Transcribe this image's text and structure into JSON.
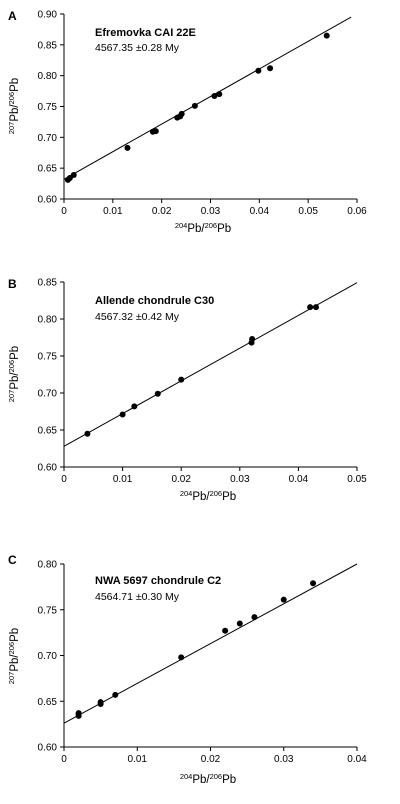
{
  "chart_data": [
    {
      "type": "scatter",
      "panel_label": "A",
      "title": "Efremovka CAI 22E",
      "subtitle": "4567.35 ±0.28 My",
      "xlabel": {
        "sup1": "204",
        "base1": "Pb/",
        "sup2": "206",
        "base2": "Pb"
      },
      "ylabel": {
        "sup1": "207",
        "base1": "Pb/",
        "sup2": "206",
        "base2": "Pb"
      },
      "xlim": [
        0,
        0.06
      ],
      "ylim": [
        0.6,
        0.9
      ],
      "xticks": [
        "0",
        "0.01",
        "0.02",
        "0.03",
        "0.04",
        "0.05",
        "0.06"
      ],
      "yticks": [
        "0.60",
        "0.65",
        "0.70",
        "0.75",
        "0.80",
        "0.85",
        "0.90"
      ],
      "grid": false,
      "x": [
        0.0008,
        0.0012,
        0.002,
        0.013,
        0.0182,
        0.0188,
        0.0232,
        0.0238,
        0.0241,
        0.0268,
        0.0308,
        0.0318,
        0.0398,
        0.0422,
        0.0538
      ],
      "y": [
        0.631,
        0.634,
        0.639,
        0.683,
        0.709,
        0.71,
        0.732,
        0.734,
        0.738,
        0.751,
        0.767,
        0.77,
        0.808,
        0.812,
        0.865
      ],
      "fit_line": {
        "x": [
          0,
          0.0588
        ],
        "y": [
          0.632,
          0.895
        ]
      }
    },
    {
      "type": "scatter",
      "panel_label": "B",
      "title": "Allende chondrule C30",
      "subtitle": "4567.32 ±0.42 My",
      "xlabel": {
        "sup1": "204",
        "base1": "Pb/",
        "sup2": "206",
        "base2": "Pb"
      },
      "ylabel": {
        "sup1": "207",
        "base1": "Pb/",
        "sup2": "206",
        "base2": "Pb"
      },
      "xlim": [
        0,
        0.05
      ],
      "ylim": [
        0.6,
        0.85
      ],
      "xticks": [
        "0",
        "0.01",
        "0.02",
        "0.03",
        "0.04",
        "0.05"
      ],
      "yticks": [
        "0.60",
        "0.65",
        "0.70",
        "0.75",
        "0.80",
        "0.85"
      ],
      "grid": false,
      "x": [
        0.004,
        0.01,
        0.012,
        0.016,
        0.02,
        0.032,
        0.0321,
        0.042,
        0.043
      ],
      "y": [
        0.645,
        0.671,
        0.682,
        0.699,
        0.718,
        0.768,
        0.773,
        0.816,
        0.816
      ],
      "fit_line": {
        "x": [
          0,
          0.05
        ],
        "y": [
          0.628,
          0.849
        ]
      }
    },
    {
      "type": "scatter",
      "panel_label": "C",
      "title": "NWA 5697 chondrule C2",
      "subtitle": "4564.71 ±0.30 My",
      "xlabel": {
        "sup1": "204",
        "base1": "Pb/",
        "sup2": "206",
        "base2": "Pb"
      },
      "ylabel": {
        "sup1": "207",
        "base1": "Pb/",
        "sup2": "206",
        "base2": "Pb"
      },
      "xlim": [
        0,
        0.04
      ],
      "ylim": [
        0.6,
        0.8
      ],
      "xticks": [
        "0",
        "0.01",
        "0.02",
        "0.03",
        "0.04"
      ],
      "yticks": [
        "0.60",
        "0.65",
        "0.70",
        "0.75",
        "0.80"
      ],
      "grid": false,
      "x": [
        0.002,
        0.002,
        0.002,
        0.005,
        0.005,
        0.007,
        0.016,
        0.022,
        0.024,
        0.026,
        0.03,
        0.034
      ],
      "y": [
        0.634,
        0.636,
        0.637,
        0.647,
        0.649,
        0.657,
        0.698,
        0.727,
        0.735,
        0.742,
        0.761,
        0.779
      ],
      "fit_line": {
        "x": [
          0,
          0.04
        ],
        "y": [
          0.626,
          0.8
        ]
      }
    }
  ]
}
